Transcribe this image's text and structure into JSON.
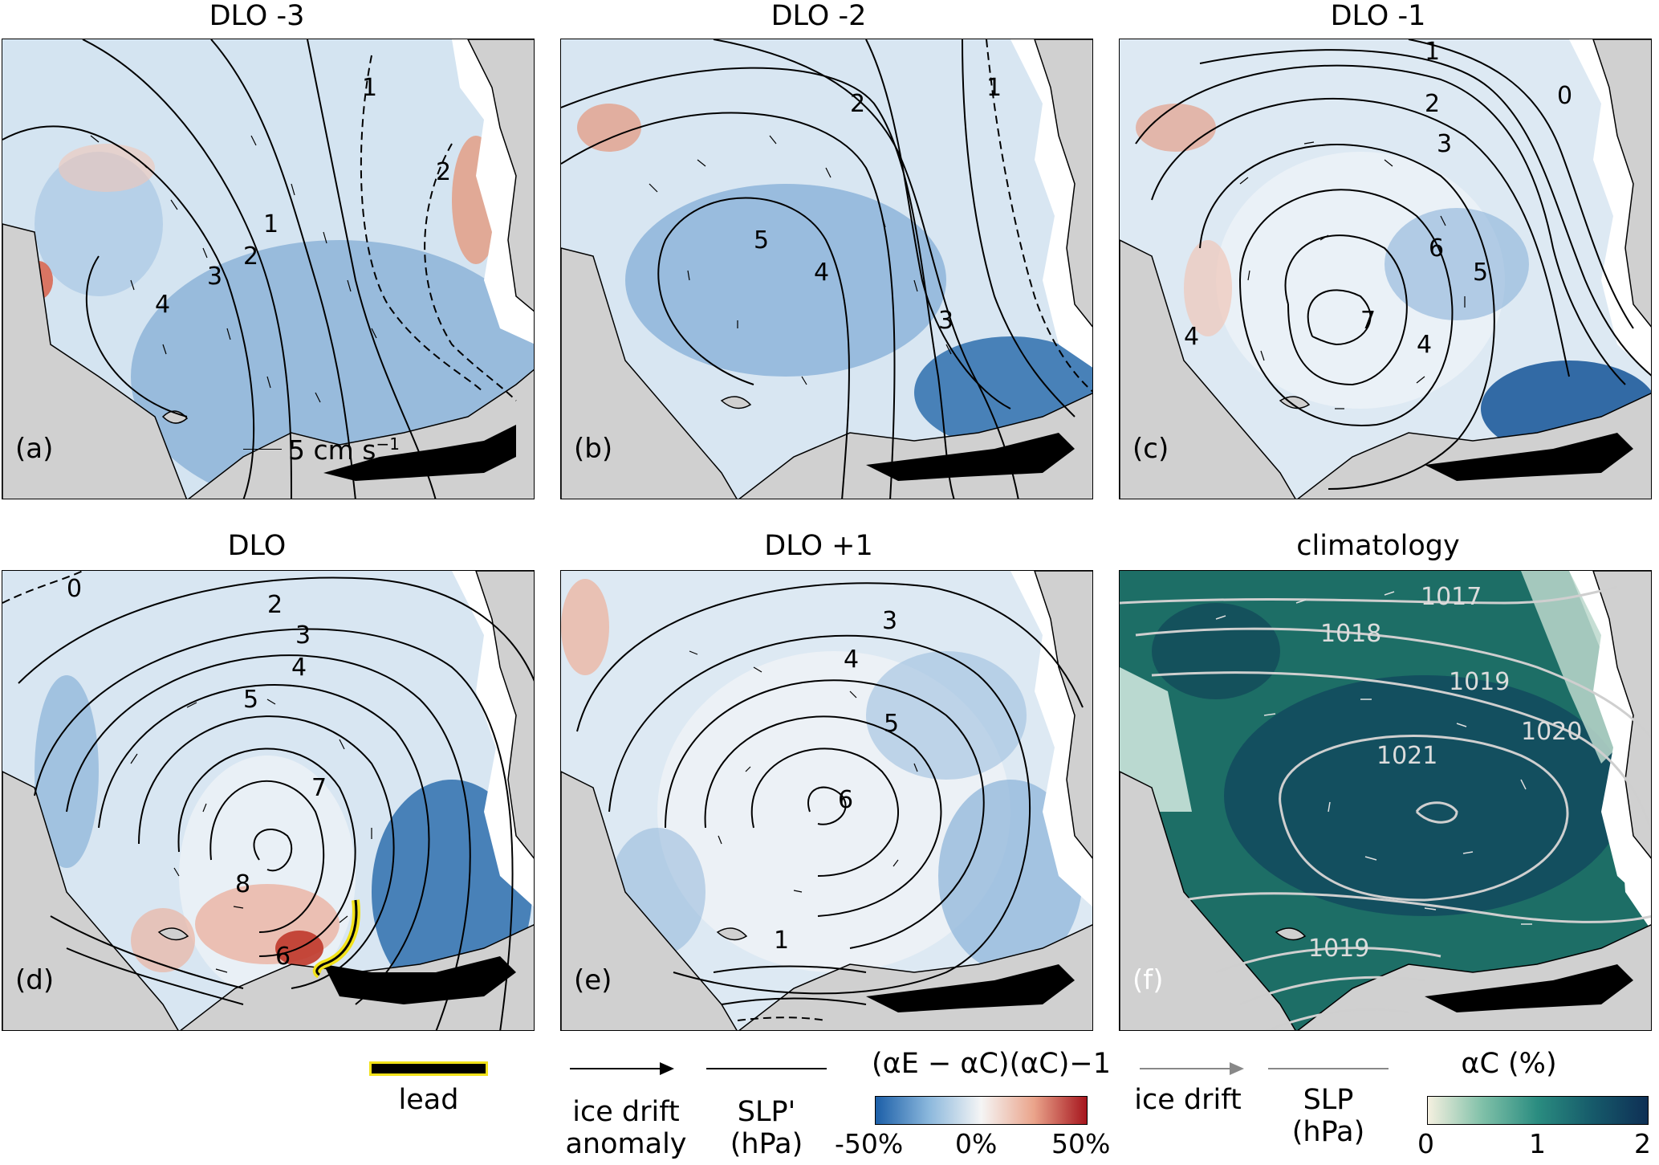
{
  "panels": [
    {
      "id": "a",
      "title": "DLO -3",
      "label": "(a)",
      "scale": "5 cm s",
      "scale_sup": "−1",
      "contours": [
        "1",
        "2",
        "3",
        "4",
        "1",
        "2"
      ]
    },
    {
      "id": "b",
      "title": "DLO -2",
      "label": "(b)",
      "contours": [
        "2",
        "3",
        "4",
        "5",
        "1"
      ]
    },
    {
      "id": "c",
      "title": "DLO -1",
      "label": "(c)",
      "contours": [
        "0",
        "1",
        "2",
        "3",
        "4",
        "5",
        "6",
        "7"
      ]
    },
    {
      "id": "d",
      "title": "DLO",
      "label": "(d)",
      "contours": [
        "0",
        "2",
        "3",
        "4",
        "5",
        "6",
        "7",
        "8"
      ]
    },
    {
      "id": "e",
      "title": "DLO +1",
      "label": "(e)",
      "contours": [
        "1",
        "3",
        "4",
        "5",
        "6"
      ]
    },
    {
      "id": "f",
      "title": "climatology",
      "label": "(f)",
      "contours": [
        "1017",
        "1018",
        "1019",
        "1020",
        "1021",
        "1019"
      ]
    }
  ],
  "legend": {
    "lead": "lead",
    "ice_drift_anomaly": [
      "ice drift",
      "anomaly"
    ],
    "slp_anom": [
      "SLP'",
      "(hPa)"
    ],
    "anom_formula": "(αE − αC)(αC)−1",
    "anom_ticks": [
      "-50%",
      "0%",
      "50%"
    ],
    "ice_drift": "ice drift",
    "slp": [
      "SLP",
      "(hPa)"
    ],
    "alpha_title": "αC (%)",
    "alpha_ticks": [
      "0",
      "1",
      "2"
    ]
  },
  "colors": {
    "ice_blue": "#cfe0ef",
    "ice_blue_dark": "#2f6fae",
    "ice_red": "#e07a63",
    "land": "#d0d0d0",
    "clim_green": "#1c6b63",
    "clim_dark": "#0f4658",
    "lead_yellow": "#f2e21a"
  }
}
